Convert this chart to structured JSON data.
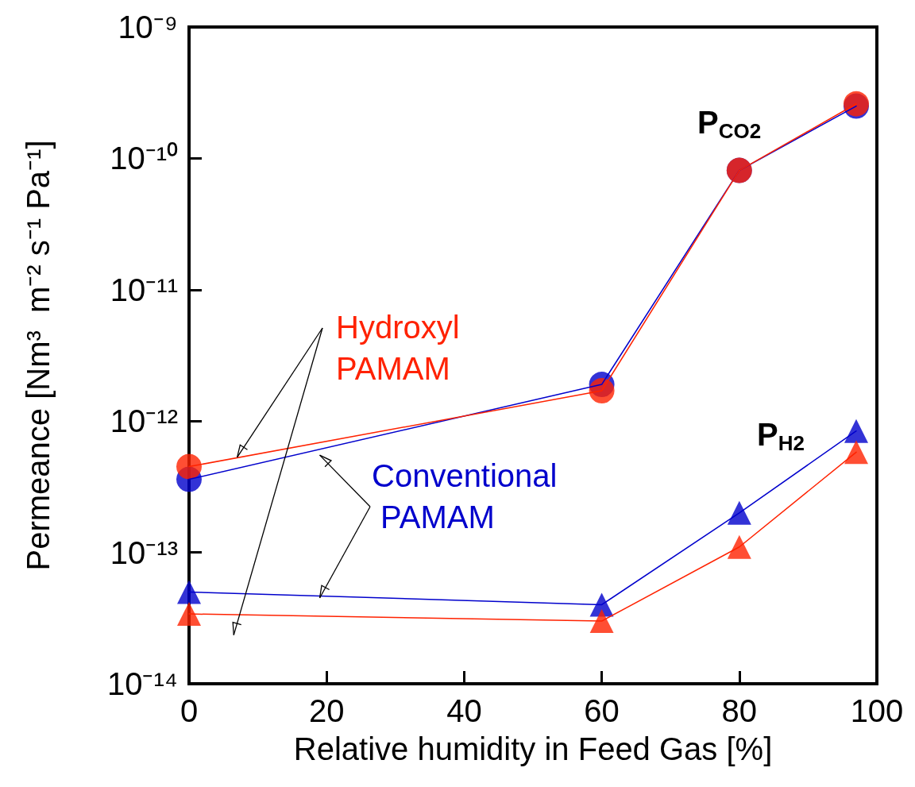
{
  "chart_data": {
    "type": "line",
    "xlabel": "Relative humidity in Feed Gas [%]",
    "ylabel": "Permeance [Nm³  m⁻² s⁻¹ Pa⁻¹]",
    "log": "y",
    "xlim": [
      0,
      100
    ],
    "xticks": [
      0,
      20,
      40,
      60,
      80,
      100
    ],
    "ylim": [
      1e-14,
      1e-09
    ],
    "yticks": [
      {
        "value": 1e-14,
        "label": "10⁻¹⁴"
      },
      {
        "value": 1e-13,
        "label": "10⁻¹³"
      },
      {
        "value": 1e-12,
        "label": "10⁻¹²"
      },
      {
        "value": 1e-11,
        "label": "10⁻¹¹"
      },
      {
        "value": 1e-10,
        "label": "10⁻¹⁰"
      },
      {
        "value": 1e-09,
        "label": "10⁻⁹"
      }
    ],
    "grid": false,
    "legend": false,
    "line_style": "solid",
    "series": [
      {
        "name": "Conventional PAMAM",
        "color": "#0000cc",
        "marker": "circle",
        "x": [
          0,
          60,
          80,
          97
        ],
        "values": [
          3.6e-13,
          1.9e-12,
          8.1e-11,
          2.5e-10
        ]
      },
      {
        "name": "Hydroxyl PAMAM",
        "color": "#ff2200",
        "marker": "circle",
        "x": [
          0,
          60,
          80,
          97
        ],
        "values": [
          4.5e-13,
          1.7e-12,
          8.1e-11,
          2.6e-10
        ]
      },
      {
        "color": "#0000cc",
        "marker": "triangle",
        "x": [
          0,
          60,
          80,
          97
        ],
        "values": [
          5e-14,
          4e-14,
          2e-13,
          8.4e-13
        ]
      },
      {
        "color": "#ff2200",
        "marker": "triangle",
        "x": [
          0,
          60,
          80,
          97
        ],
        "values": [
          3.4e-14,
          3e-14,
          1.1e-13,
          5.8e-13
        ]
      }
    ],
    "annotations": [
      "P$_{CO2}$",
      "P$_{H2}$"
    ]
  }
}
